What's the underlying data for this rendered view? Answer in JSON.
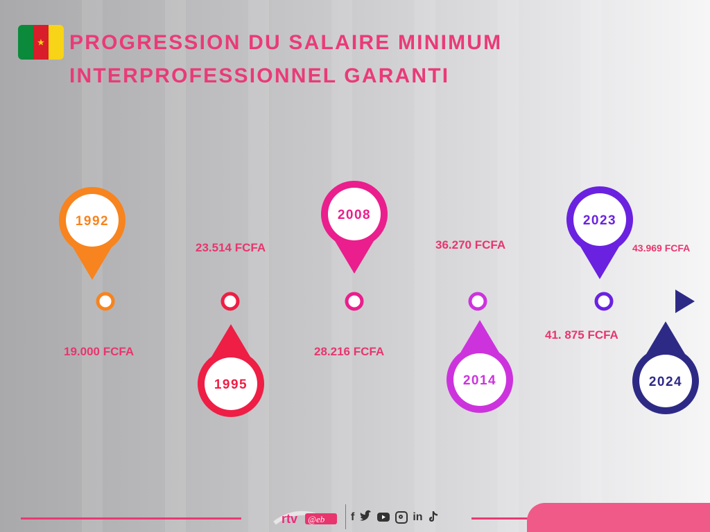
{
  "title": {
    "line1": "PROGRESSION DU SALAIRE MINIMUM",
    "line2": "INTERPROFESSIONNEL GARANTI"
  },
  "flag": {
    "icon": "cameroon-flag-icon",
    "colors": [
      "#0a8a3a",
      "#d81e2a",
      "#f7d417"
    ]
  },
  "chart_data": {
    "type": "timeline",
    "events": [
      {
        "year": "1992",
        "value": "19.000 FCFA",
        "color": "#f7841e"
      },
      {
        "year": "1995",
        "value": "23.514 FCFA",
        "color": "#ee1e45"
      },
      {
        "year": "2008",
        "value": "28.216 FCFA",
        "color": "#ea1e8c"
      },
      {
        "year": "2014",
        "value": "36.270 FCFA",
        "color": "#cc33dd"
      },
      {
        "year": "2023",
        "value": "41. 875 FCFA",
        "color": "#6a22e0"
      },
      {
        "year": "2024",
        "value": "43.969 FCFA",
        "color": "#2d2a86"
      }
    ]
  },
  "footer": {
    "logo_text": "rtv",
    "logo_suffix": "@eb",
    "socials": [
      "f",
      "in"
    ],
    "icons": [
      "facebook-icon",
      "twitter-icon",
      "youtube-icon",
      "instagram-icon",
      "linkedin-icon",
      "tiktok-icon"
    ]
  }
}
